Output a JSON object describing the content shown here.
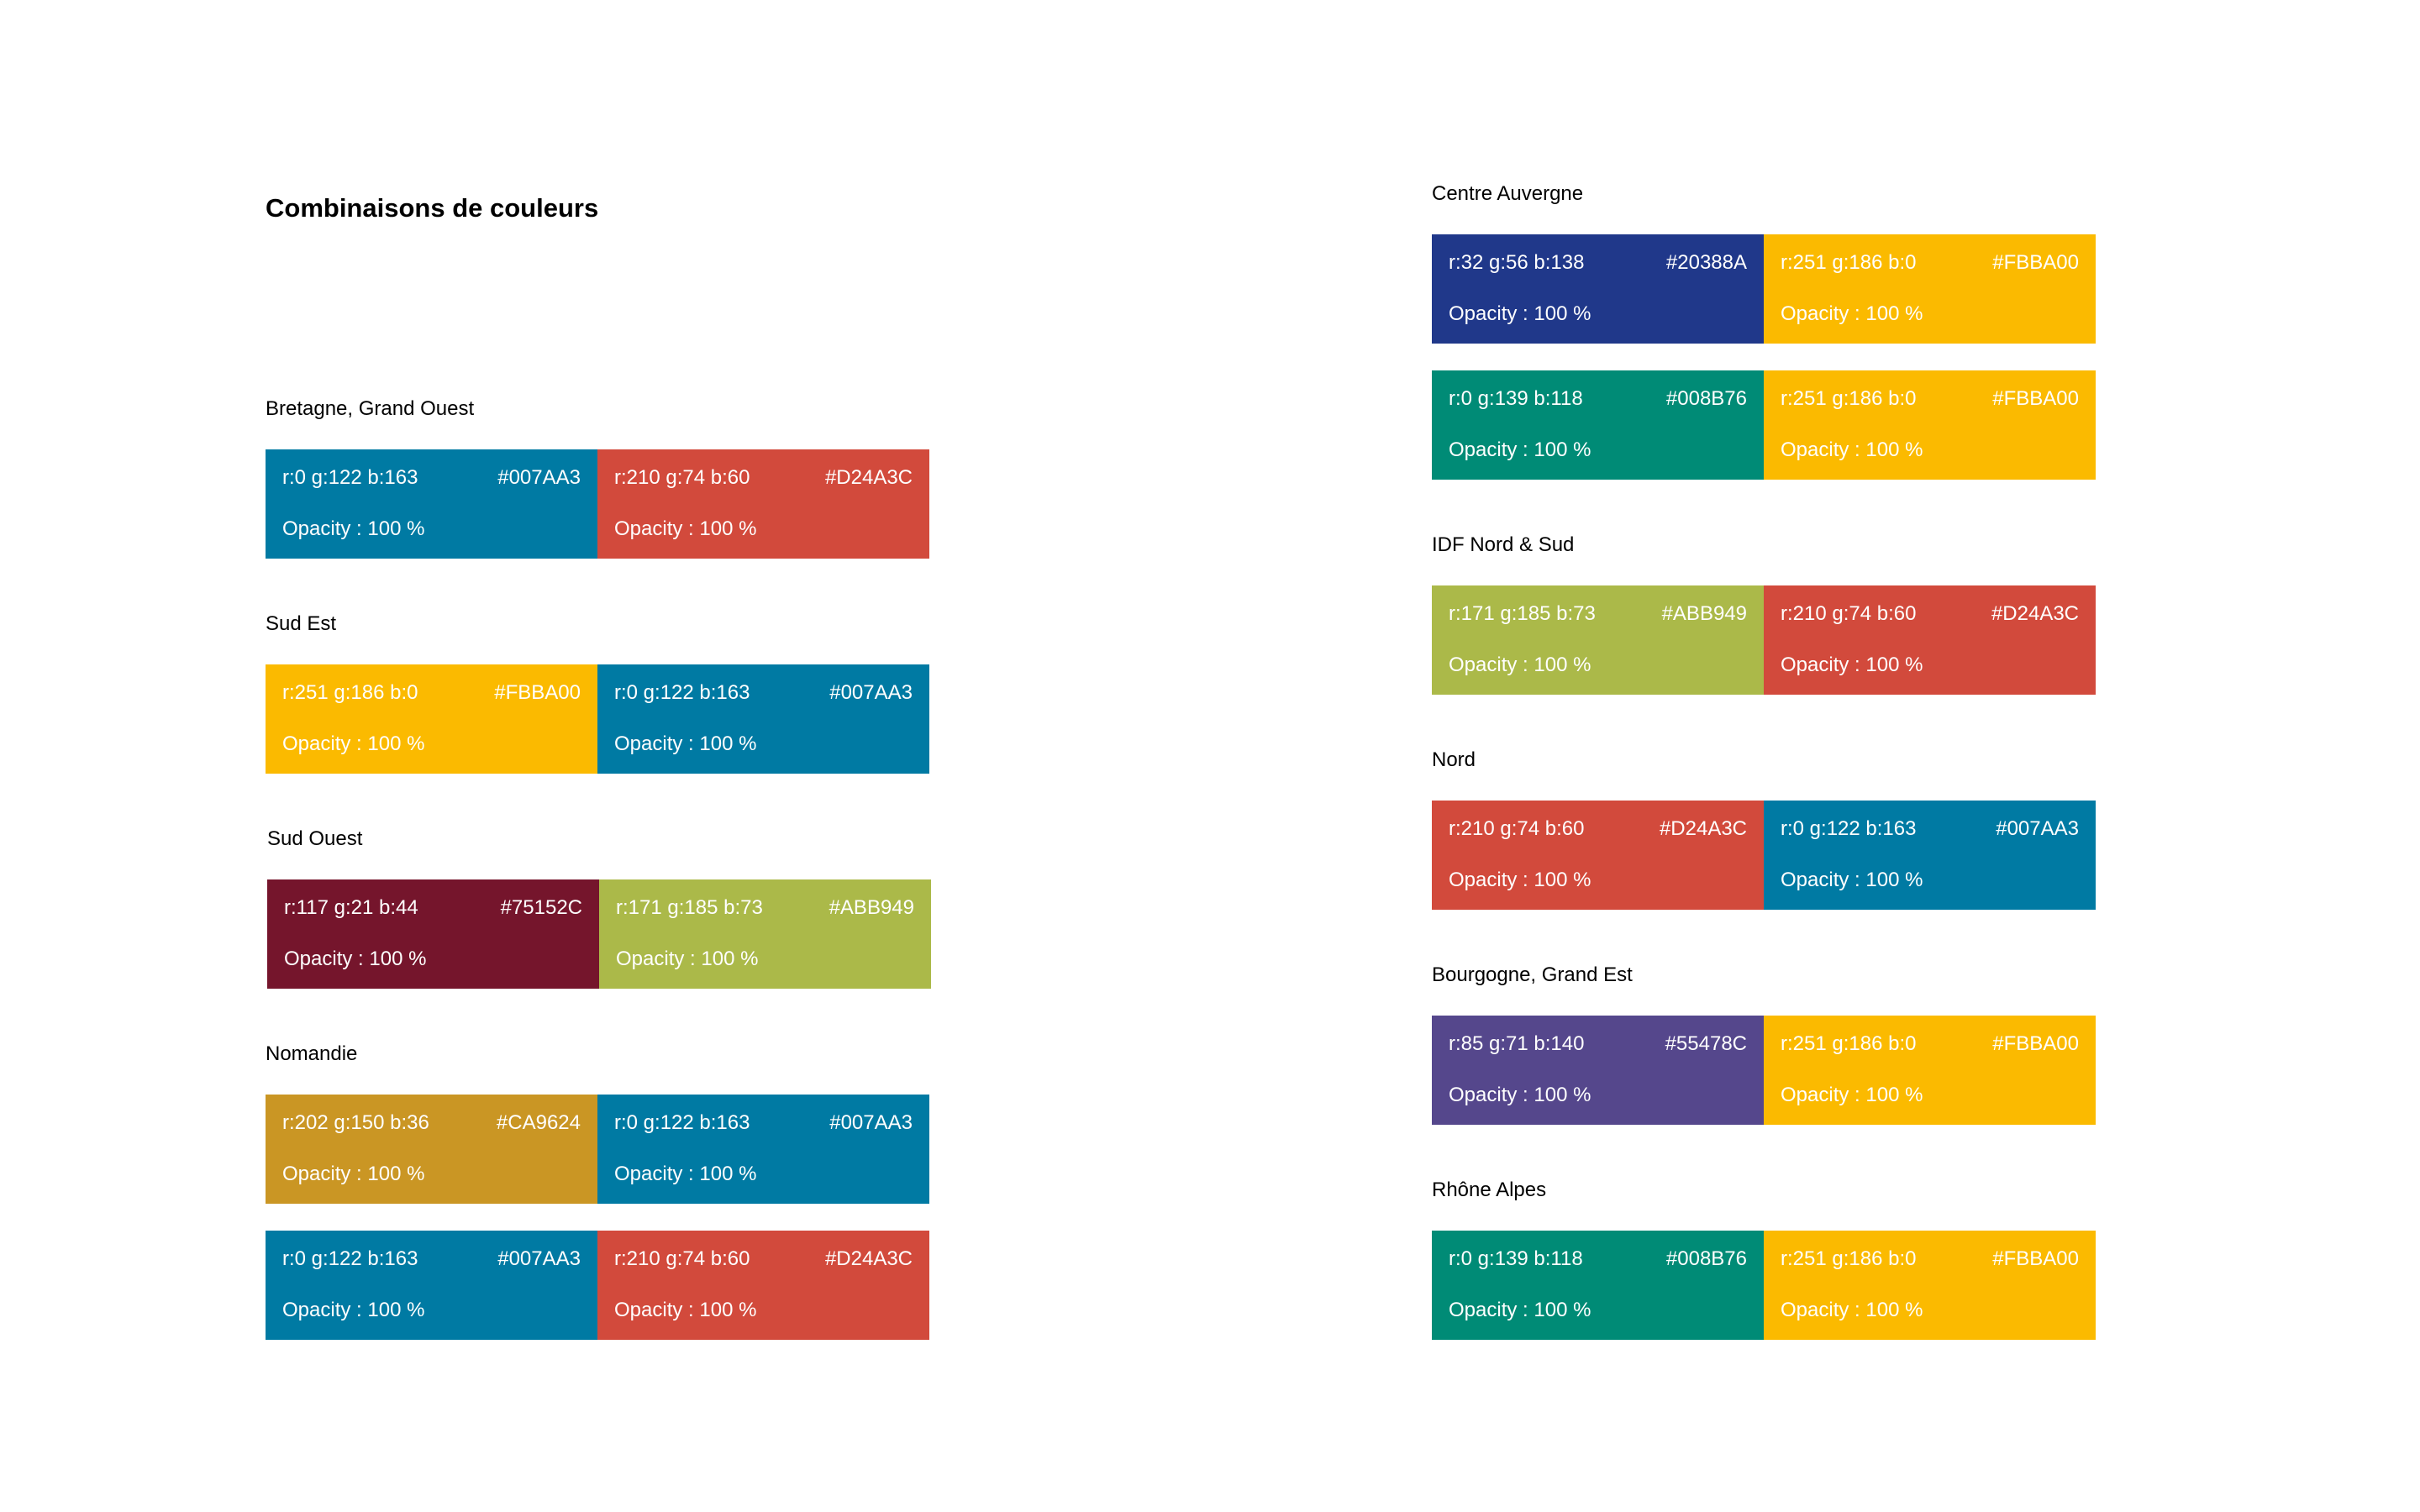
{
  "title": "Combinaisons de couleurs",
  "opacity_label": "Opacity : 100 %",
  "colors": {
    "bleu": {
      "rgb": "r:0 g:122 b:163",
      "hex": "#007AA3"
    },
    "rouge": {
      "rgb": "r:210 g:74 b:60",
      "hex": "#D24A3C"
    },
    "jaune": {
      "rgb": "r:251 g:186 b:0",
      "hex": "#FBBA00"
    },
    "bordeaux": {
      "rgb": "r:117 g:21 b:44",
      "hex": "#75152C"
    },
    "vert_clair": {
      "rgb": "r:171 g:185 b:73",
      "hex": "#ABB949"
    },
    "ocre": {
      "rgb": "r:202 g:150 b:36",
      "hex": "#CA9624"
    },
    "bleu_fonce": {
      "rgb": "r:32 g:56 b:138",
      "hex": "#20388A"
    },
    "vert": {
      "rgb": "r:0 g:139 b:118",
      "hex": "#008B76"
    },
    "violet": {
      "rgb": "r:85 g:71 b:140",
      "hex": "#55478C"
    }
  },
  "sections": [
    {
      "title": "Bretagne, Grand Ouest",
      "combos": [
        [
          "bleu",
          "rouge"
        ]
      ]
    },
    {
      "title": "Sud Est",
      "combos": [
        [
          "jaune",
          "bleu"
        ]
      ]
    },
    {
      "title": "Sud Ouest",
      "combos": [
        [
          "bordeaux",
          "vert_clair"
        ]
      ]
    },
    {
      "title": "Nomandie",
      "combos": [
        [
          "ocre",
          "bleu"
        ],
        [
          "bleu",
          "rouge"
        ]
      ]
    },
    {
      "title": "Centre Auvergne",
      "combos": [
        [
          "bleu_fonce",
          "jaune"
        ],
        [
          "vert",
          "jaune"
        ]
      ]
    },
    {
      "title": "IDF Nord & Sud",
      "combos": [
        [
          "vert_clair",
          "rouge"
        ]
      ]
    },
    {
      "title": "Nord",
      "combos": [
        [
          "rouge",
          "bleu"
        ]
      ]
    },
    {
      "title": "Bourgogne, Grand Est",
      "combos": [
        [
          "violet",
          "jaune"
        ]
      ]
    },
    {
      "title": "Rhône Alpes",
      "combos": [
        [
          "vert",
          "jaune"
        ]
      ]
    }
  ]
}
